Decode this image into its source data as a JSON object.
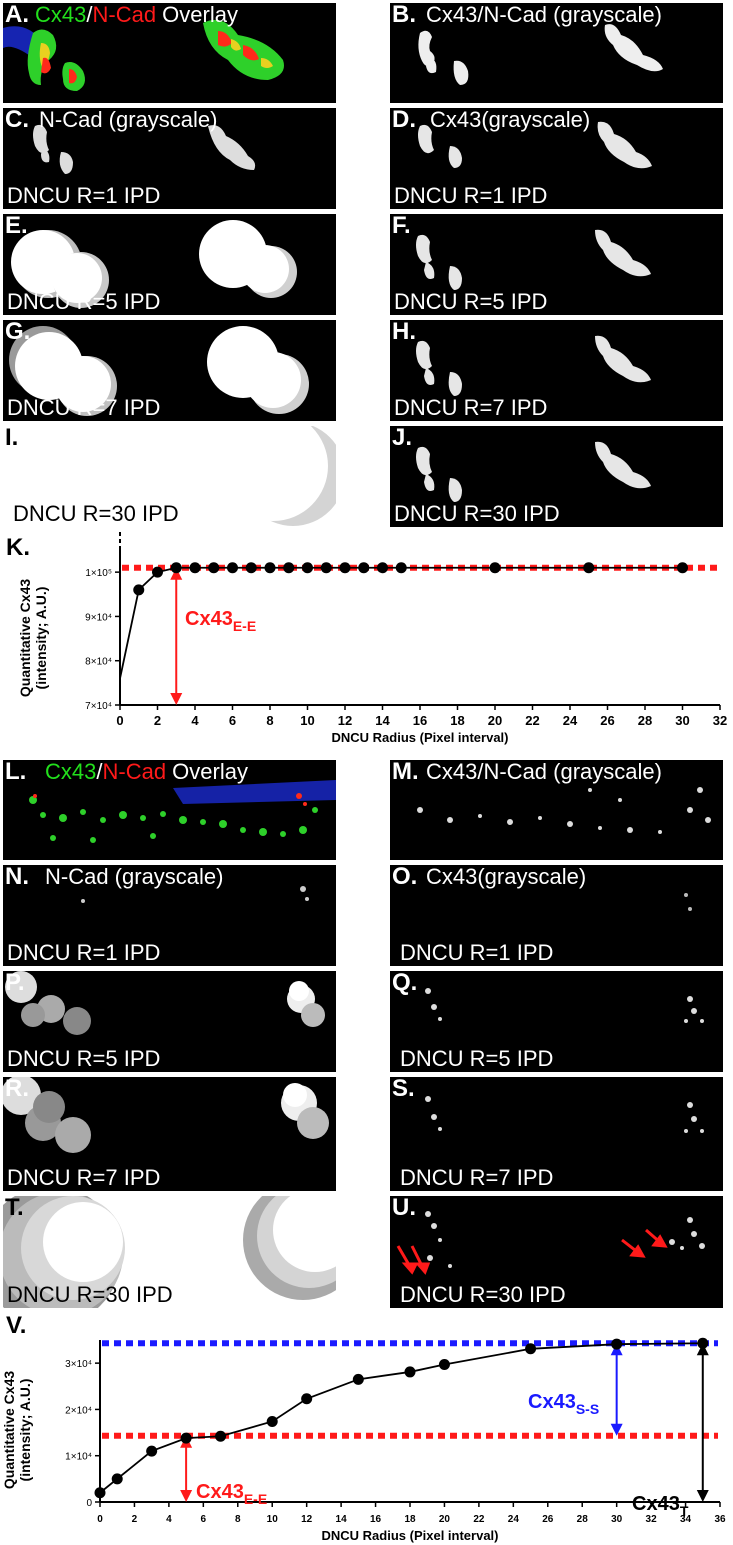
{
  "panels_top": {
    "A": {
      "letter": "A.",
      "t1": "Cx43",
      "sep": "/",
      "t2": "N-Cad",
      "t3": " Overlay"
    },
    "B": {
      "letter": "B.",
      "title": "Cx43/N-Cad (grayscale)"
    },
    "C": {
      "letter": "C.",
      "title": "N-Cad (grayscale)",
      "caption": "DNCU R=1 IPD"
    },
    "D": {
      "letter": "D.",
      "title": "Cx43(grayscale)",
      "caption": "DNCU R=1 IPD"
    },
    "E": {
      "letter": "E.",
      "caption": "DNCU R=5 IPD"
    },
    "F": {
      "letter": "F.",
      "caption": "DNCU R=5 IPD"
    },
    "G": {
      "letter": "G.",
      "caption": "DNCU R=7 IPD"
    },
    "H": {
      "letter": "H.",
      "caption": "DNCU R=7 IPD"
    },
    "I": {
      "letter": "I.",
      "caption": "DNCU R=30 IPD"
    },
    "J": {
      "letter": "J.",
      "caption": "DNCU R=30 IPD"
    }
  },
  "panels_bottom": {
    "L": {
      "letter": "L.",
      "t1": "Cx43",
      "sep": "/",
      "t2": "N-Cad",
      "t3": " Overlay"
    },
    "M": {
      "letter": "M.",
      "title": "Cx43/N-Cad (grayscale)"
    },
    "N": {
      "letter": "N.",
      "title": "N-Cad (grayscale)",
      "caption": "DNCU R=1 IPD"
    },
    "O": {
      "letter": "O.",
      "title": "Cx43(grayscale)",
      "caption": "DNCU R=1 IPD"
    },
    "P": {
      "letter": "P.",
      "caption": "DNCU R=5 IPD"
    },
    "Q": {
      "letter": "Q.",
      "caption": "DNCU R=5 IPD"
    },
    "R": {
      "letter": "R.",
      "caption": "DNCU R=7 IPD"
    },
    "S": {
      "letter": "S.",
      "caption": "DNCU R=7 IPD"
    },
    "T": {
      "letter": "T.",
      "caption": "DNCU R=30 IPD"
    },
    "U": {
      "letter": "U.",
      "caption": "DNCU R=30 IPD"
    }
  },
  "chart_K": {
    "letter": "K.",
    "ylabel_line1": "Quantitative Cx43",
    "ylabel_line2": "(intensity; A.U.)",
    "xlabel": "DNCU Radius (Pixel interval)",
    "annotation": {
      "base": "Cx43",
      "sub": "E-E"
    }
  },
  "chart_V": {
    "letter": "V.",
    "ylabel_line1": "Quantitative Cx43",
    "ylabel_line2": "(intensity; A.U.)",
    "xlabel": "DNCU Radius (Pixel interval)",
    "annotation_ee": {
      "base": "Cx43",
      "sub": "E-E"
    },
    "annotation_ss": {
      "base": "Cx43",
      "sub": "S-S"
    },
    "annotation_t": {
      "base": "Cx43",
      "sub": "T"
    }
  },
  "colors": {
    "green": "#22e01c",
    "red": "#ff1a1a",
    "blue": "#1a1aff",
    "ee_line": "#ff1a1a",
    "ss_line": "#1a1aff"
  },
  "chart_data": [
    {
      "panel": "K",
      "type": "line",
      "xlabel": "DNCU Radius (Pixel interval)",
      "ylabel": "Quantitative Cx43 (intensity; A.U.)",
      "xlim": [
        0,
        32
      ],
      "ylim": [
        70000,
        105000
      ],
      "x_ticks": [
        0,
        2,
        4,
        6,
        8,
        10,
        12,
        14,
        16,
        18,
        20,
        22,
        24,
        26,
        28,
        30,
        32
      ],
      "y_ticks": [
        {
          "v": 70000,
          "label": "7×10⁴"
        },
        {
          "v": 80000,
          "label": "8×10⁴"
        },
        {
          "v": 90000,
          "label": "9×10⁴"
        },
        {
          "v": 100000,
          "label": "1×10⁵"
        }
      ],
      "series": [
        {
          "x": [
            0,
            1,
            2,
            3,
            4,
            5,
            6,
            7,
            8,
            9,
            10,
            11,
            12,
            13,
            14,
            15,
            20,
            25,
            30
          ],
          "y": [
            76000,
            96000,
            100000,
            101000,
            101000,
            101000,
            101000,
            101000,
            101000,
            101000,
            101000,
            101000,
            101000,
            101000,
            101000,
            101000,
            101000,
            101000,
            101000
          ],
          "markers": [
            false,
            true,
            true,
            true,
            true,
            true,
            true,
            true,
            true,
            true,
            true,
            true,
            true,
            true,
            true,
            true,
            true,
            true,
            true
          ]
        }
      ],
      "reference_lines": [
        {
          "y": 101000,
          "color": "#ff1a1a",
          "style": "dotted"
        }
      ],
      "arrows": [
        {
          "x": 3,
          "y_from": 70000,
          "y_to": 101000,
          "color": "#ff1a1a",
          "label": "Cx43 E-E"
        }
      ]
    },
    {
      "panel": "V",
      "type": "line",
      "xlabel": "DNCU Radius (Pixel interval)",
      "ylabel": "Quantitative Cx43 (intensity; A.U.)",
      "xlim": [
        0,
        36
      ],
      "ylim": [
        0,
        35000
      ],
      "x_ticks": [
        0,
        2,
        4,
        6,
        8,
        10,
        12,
        14,
        16,
        18,
        20,
        22,
        24,
        26,
        28,
        30,
        32,
        34,
        36
      ],
      "y_ticks": [
        {
          "v": 0,
          "label": "0"
        },
        {
          "v": 10000,
          "label": "1×10⁴"
        },
        {
          "v": 20000,
          "label": "2×10⁴"
        },
        {
          "v": 30000,
          "label": "3×10⁴"
        }
      ],
      "series": [
        {
          "x": [
            0,
            1,
            3,
            5,
            7,
            10,
            12,
            15,
            18,
            20,
            25,
            30,
            35
          ],
          "y": [
            2000,
            5000,
            11000,
            13800,
            14200,
            17400,
            22300,
            26500,
            28100,
            29700,
            33100,
            34100,
            34300
          ],
          "markers": [
            true,
            true,
            true,
            true,
            true,
            true,
            true,
            true,
            true,
            true,
            true,
            true,
            true
          ]
        }
      ],
      "reference_lines": [
        {
          "y": 14300,
          "color": "#ff1a1a",
          "style": "dotted"
        },
        {
          "y": 34300,
          "color": "#1a1aff",
          "style": "dotted"
        }
      ],
      "arrows": [
        {
          "x": 5,
          "y_from": 0,
          "y_to": 14300,
          "color": "#ff1a1a",
          "label": "Cx43 E-E"
        },
        {
          "x": 30,
          "y_from": 14300,
          "y_to": 34300,
          "color": "#1a1aff",
          "label": "Cx43 S-S"
        },
        {
          "x": 35,
          "y_from": 0,
          "y_to": 34300,
          "color": "#000000",
          "label": "Cx43 T"
        }
      ]
    }
  ]
}
